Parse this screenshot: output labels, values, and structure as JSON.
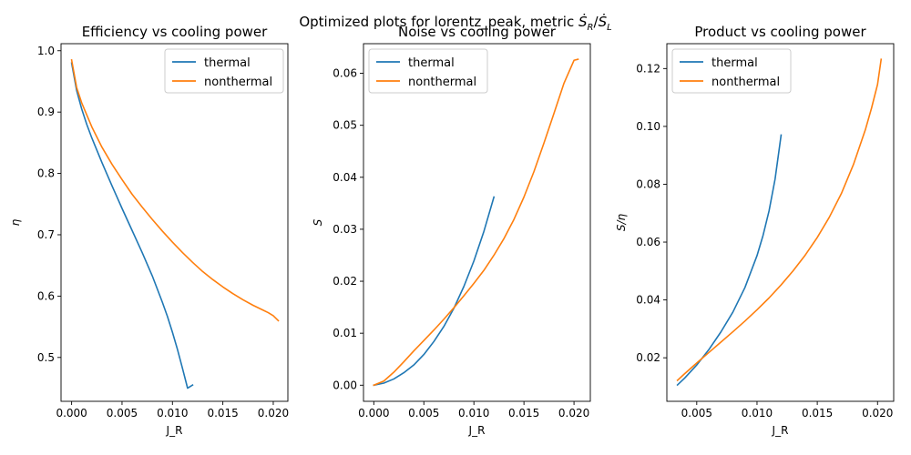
{
  "figure": {
    "suptitle": "Optimized plots for lorentz_peak, metric",
    "metric_symbol": "Ṡ_R / Ṡ_L"
  },
  "colors": {
    "thermal": "#1f77b4",
    "nonthermal": "#ff7f0e",
    "axes": "#000000"
  },
  "chart_data": [
    {
      "type": "line",
      "title": "Efficiency vs cooling power",
      "xlabel": "J_R",
      "ylabel": "η",
      "xlim": [
        -0.00105,
        0.02145
      ],
      "ylim": [
        0.4285,
        1.0115
      ],
      "xticks": [
        0.0,
        0.005,
        0.01,
        0.015,
        0.02
      ],
      "xtick_labels": [
        "0.000",
        "0.005",
        "0.010",
        "0.015",
        "0.020"
      ],
      "yticks": [
        0.5,
        0.6,
        0.7,
        0.8,
        0.9,
        1.0
      ],
      "ytick_labels": [
        "0.5",
        "0.6",
        "0.7",
        "0.8",
        "0.9",
        "1.0"
      ],
      "legend_position": "upper right",
      "grid": false,
      "series": [
        {
          "name": "thermal",
          "x": [
            0.0,
            0.0005,
            0.001,
            0.0015,
            0.002,
            0.003,
            0.004,
            0.005,
            0.006,
            0.007,
            0.008,
            0.009,
            0.0095,
            0.01,
            0.0105,
            0.011,
            0.0115,
            0.012
          ],
          "y": [
            0.98,
            0.935,
            0.905,
            0.88,
            0.858,
            0.818,
            0.78,
            0.743,
            0.707,
            0.671,
            0.633,
            0.59,
            0.567,
            0.541,
            0.513,
            0.482,
            0.45,
            0.455
          ]
        },
        {
          "name": "nonthermal",
          "x": [
            0.0,
            0.0005,
            0.001,
            0.002,
            0.003,
            0.004,
            0.005,
            0.006,
            0.007,
            0.008,
            0.009,
            0.01,
            0.011,
            0.012,
            0.013,
            0.014,
            0.015,
            0.016,
            0.017,
            0.018,
            0.019,
            0.0195,
            0.02,
            0.0205
          ],
          "y": [
            0.985,
            0.94,
            0.915,
            0.876,
            0.843,
            0.815,
            0.79,
            0.766,
            0.745,
            0.725,
            0.706,
            0.688,
            0.671,
            0.655,
            0.64,
            0.627,
            0.615,
            0.604,
            0.594,
            0.585,
            0.577,
            0.573,
            0.568,
            0.56
          ]
        }
      ]
    },
    {
      "type": "line",
      "title": "Noise vs cooling power",
      "xlabel": "J_R",
      "ylabel": "S",
      "xlim": [
        -0.00103,
        0.02163
      ],
      "ylim": [
        -0.0031,
        0.0657
      ],
      "xticks": [
        0.0,
        0.005,
        0.01,
        0.015,
        0.02
      ],
      "xtick_labels": [
        "0.000",
        "0.005",
        "0.010",
        "0.015",
        "0.020"
      ],
      "yticks": [
        0.0,
        0.01,
        0.02,
        0.03,
        0.04,
        0.05,
        0.06
      ],
      "ytick_labels": [
        "0.00",
        "0.01",
        "0.02",
        "0.03",
        "0.04",
        "0.05",
        "0.06"
      ],
      "legend_position": "upper left",
      "grid": false,
      "series": [
        {
          "name": "thermal",
          "x": [
            0.0,
            0.001,
            0.002,
            0.003,
            0.004,
            0.005,
            0.006,
            0.007,
            0.008,
            0.009,
            0.01,
            0.011,
            0.012
          ],
          "y": [
            0.0,
            0.0004,
            0.0012,
            0.0024,
            0.0039,
            0.0059,
            0.0084,
            0.0113,
            0.0148,
            0.019,
            0.0239,
            0.0296,
            0.0362
          ]
        },
        {
          "name": "nonthermal",
          "x": [
            0.0,
            0.001,
            0.002,
            0.003,
            0.004,
            0.005,
            0.006,
            0.007,
            0.008,
            0.009,
            0.01,
            0.011,
            0.012,
            0.013,
            0.014,
            0.015,
            0.016,
            0.017,
            0.018,
            0.019,
            0.02,
            0.0204
          ],
          "y": [
            0.0,
            0.0008,
            0.0025,
            0.0045,
            0.0066,
            0.0086,
            0.0106,
            0.0127,
            0.0149,
            0.0172,
            0.0196,
            0.0221,
            0.025,
            0.0282,
            0.0319,
            0.0362,
            0.0411,
            0.0466,
            0.0523,
            0.0581,
            0.0625,
            0.0627
          ]
        }
      ]
    },
    {
      "type": "line",
      "title": "Product vs cooling power",
      "xlabel": "J_R",
      "ylabel": "S/η",
      "xlim": [
        0.00252,
        0.02134
      ],
      "ylim": [
        0.00495,
        0.1286
      ],
      "xticks": [
        0.005,
        0.01,
        0.015,
        0.02
      ],
      "xtick_labels": [
        "0.005",
        "0.010",
        "0.015",
        "0.020"
      ],
      "yticks": [
        0.02,
        0.04,
        0.06,
        0.08,
        0.1,
        0.12
      ],
      "ytick_labels": [
        "0.02",
        "0.04",
        "0.06",
        "0.08",
        "0.10",
        "0.12"
      ],
      "legend_position": "upper left",
      "grid": false,
      "series": [
        {
          "name": "thermal",
          "x": [
            0.0034,
            0.004,
            0.005,
            0.006,
            0.007,
            0.008,
            0.009,
            0.01,
            0.0105,
            0.011,
            0.0115,
            0.012
          ],
          "y": [
            0.0106,
            0.013,
            0.0175,
            0.0228,
            0.0289,
            0.0358,
            0.0443,
            0.0553,
            0.0623,
            0.0708,
            0.0818,
            0.097
          ]
        },
        {
          "name": "nonthermal",
          "x": [
            0.0034,
            0.004,
            0.005,
            0.006,
            0.007,
            0.008,
            0.009,
            0.01,
            0.011,
            0.012,
            0.013,
            0.014,
            0.015,
            0.016,
            0.017,
            0.018,
            0.019,
            0.0195,
            0.02,
            0.0203
          ],
          "y": [
            0.0122,
            0.0145,
            0.0182,
            0.0218,
            0.0254,
            0.029,
            0.0327,
            0.0366,
            0.0407,
            0.0452,
            0.0501,
            0.0555,
            0.0616,
            0.0686,
            0.0768,
            0.0868,
            0.099,
            0.1063,
            0.1145,
            0.1232
          ]
        }
      ]
    }
  ]
}
